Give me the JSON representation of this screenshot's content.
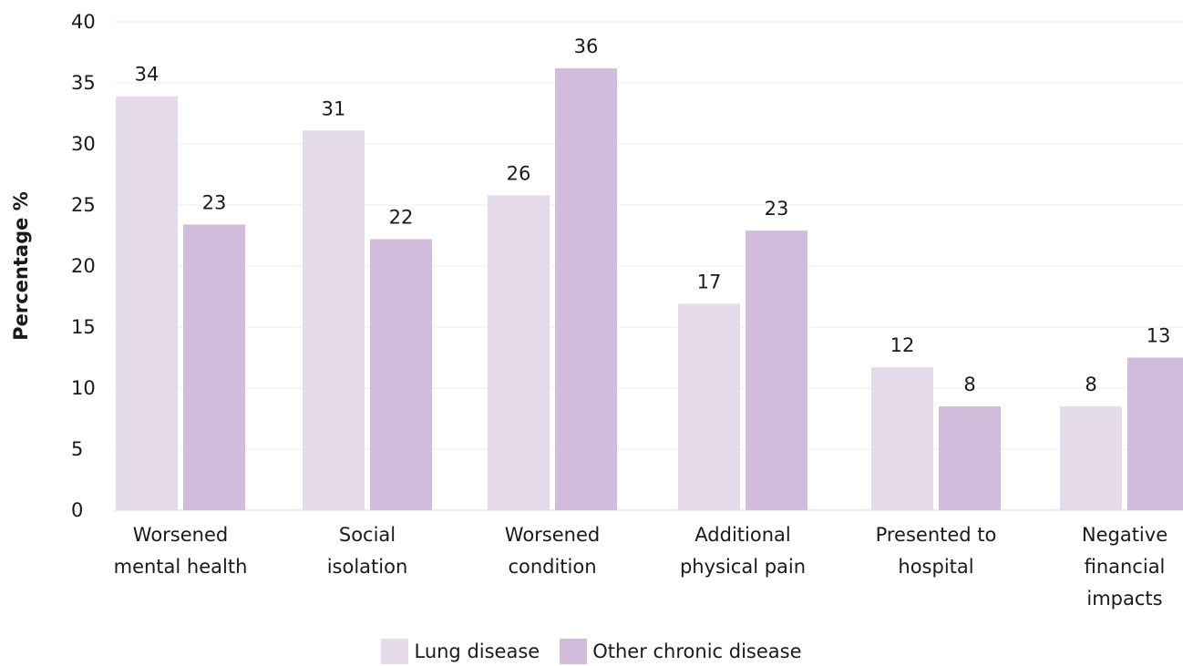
{
  "chart_data": {
    "type": "bar",
    "ylabel": "Percentage %",
    "ylim": [
      0,
      40
    ],
    "yticks": [
      0,
      5,
      10,
      15,
      20,
      25,
      30,
      35,
      40
    ],
    "grid": true,
    "legend_position": "bottom-center",
    "categories": [
      [
        "Worsened",
        "mental health"
      ],
      [
        "Social",
        "isolation"
      ],
      [
        "Worsened",
        "condition"
      ],
      [
        "Additional",
        "physical pain"
      ],
      [
        "Presented to",
        "hospital"
      ],
      [
        "Negative",
        "financial",
        "impacts"
      ]
    ],
    "series": [
      {
        "name": "Lung disease",
        "color": "#e6dbea",
        "values": [
          33.9,
          31.1,
          25.8,
          16.9,
          11.7,
          8.5
        ],
        "labels": [
          "34",
          "31",
          "26",
          "17",
          "12",
          "8"
        ]
      },
      {
        "name": "Other chronic disease",
        "color": "#d1bddb",
        "values": [
          23.4,
          22.2,
          36.2,
          22.9,
          8.5,
          12.5
        ],
        "labels": [
          "23",
          "22",
          "36",
          "23",
          "8",
          "13"
        ]
      }
    ]
  }
}
